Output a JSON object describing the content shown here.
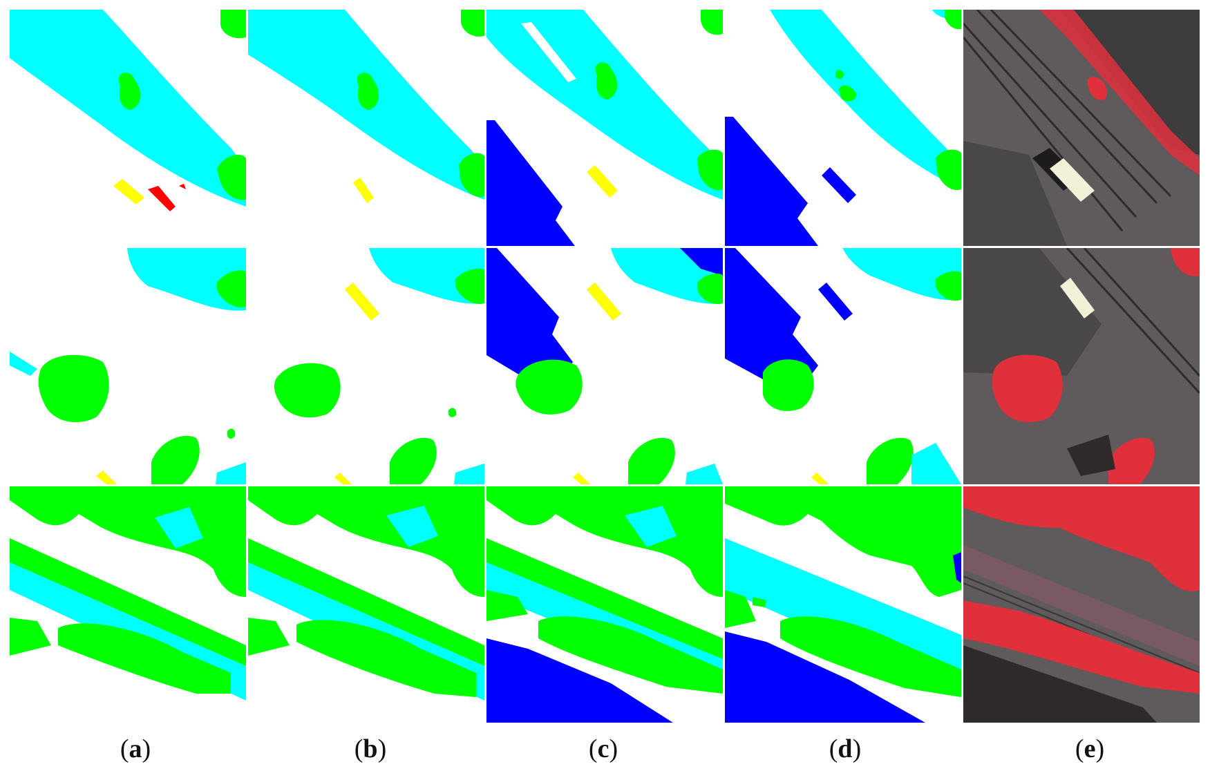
{
  "figure": {
    "captions": [
      {
        "open": "(",
        "letter": "a",
        "close": ")"
      },
      {
        "open": "(",
        "letter": "b",
        "close": ")"
      },
      {
        "open": "(",
        "letter": "c",
        "close": ")"
      },
      {
        "open": "(",
        "letter": "d",
        "close": ")"
      },
      {
        "open": "(",
        "letter": "e",
        "close": ")"
      }
    ],
    "class_colors": {
      "surface": "#ffffff",
      "building": "#0000ff",
      "low_vegetation": "#00ffff",
      "tree": "#00ff00",
      "car": "#ffff00",
      "clutter": "#ff0000"
    },
    "image_colors": {
      "ground": "#5f5a5c",
      "roof": "#4a4748",
      "vegetation": "#e0303c",
      "rail": "#3a3637",
      "truck": "#f3f0d8"
    }
  }
}
